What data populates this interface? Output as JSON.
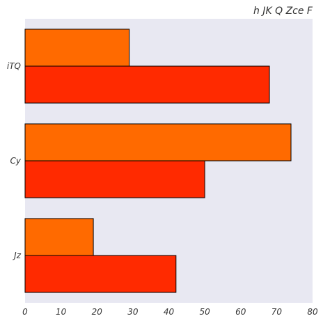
{
  "chart_data": {
    "type": "bar",
    "orientation": "horizontal",
    "title": "h JK Q Zce F",
    "xlabel": "",
    "ylabel": "",
    "categories": [
      "iTQ",
      "Cy",
      "Jz"
    ],
    "series": [
      {
        "values": [
          29,
          74,
          19
        ],
        "color": "#ff6a00"
      },
      {
        "values": [
          68,
          50,
          42
        ],
        "color": "#ff2a00"
      }
    ],
    "xlim": [
      0,
      80
    ],
    "xticks": [
      0,
      10,
      20,
      30,
      40,
      50,
      60,
      70,
      80
    ],
    "grid": false,
    "legend": "none",
    "background": "#e8e8f2",
    "bar_edge_color": "#000000"
  }
}
